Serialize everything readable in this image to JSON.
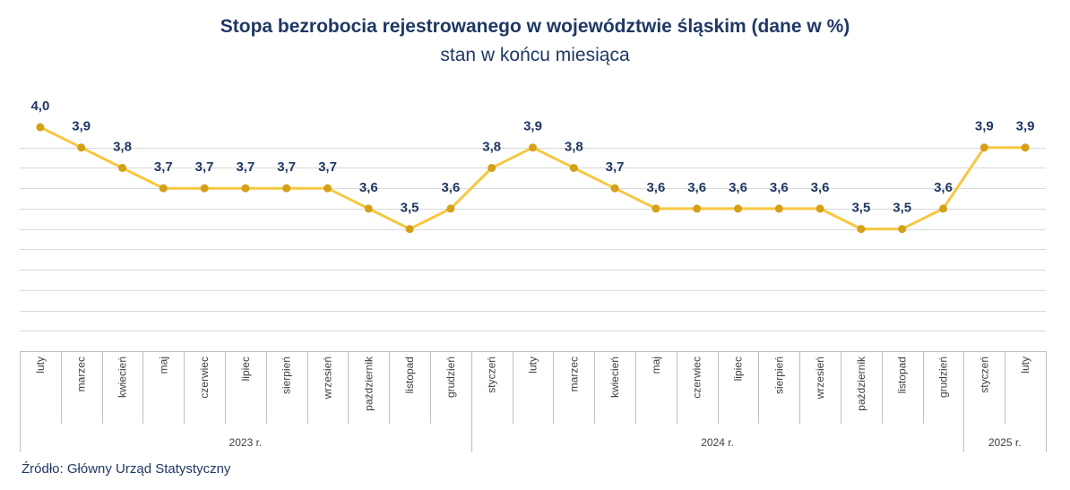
{
  "chart_data": {
    "type": "line",
    "title": "Stopa bezrobocia rejestrowanego w województwie śląskim (dane w %)",
    "subtitle": "stan w końcu miesiąca",
    "source": "Źródło: Główny Urząd Statystyczny",
    "categories": [
      "luty",
      "marzec",
      "kwiecień",
      "maj",
      "czerwiec",
      "lipiec",
      "sierpień",
      "wrzesień",
      "październik",
      "listopad",
      "grudzień",
      "styczeń",
      "luty",
      "marzec",
      "kwiecień",
      "maj",
      "czerwiec",
      "lipiec",
      "sierpień",
      "wrzesień",
      "październik",
      "listopad",
      "grudzień",
      "styczeń",
      "luty"
    ],
    "value_labels": [
      "4,0",
      "3,9",
      "3,8",
      "3,7",
      "3,7",
      "3,7",
      "3,7",
      "3,7",
      "3,6",
      "3,5",
      "3,6",
      "3,8",
      "3,9",
      "3,8",
      "3,7",
      "3,6",
      "3,6",
      "3,6",
      "3,6",
      "3,6",
      "3,5",
      "3,5",
      "3,6",
      "3,9",
      "3,9"
    ],
    "series": [
      {
        "values": [
          4.0,
          3.9,
          3.8,
          3.7,
          3.7,
          3.7,
          3.7,
          3.7,
          3.6,
          3.5,
          3.6,
          3.8,
          3.9,
          3.8,
          3.7,
          3.6,
          3.6,
          3.6,
          3.6,
          3.6,
          3.5,
          3.5,
          3.6,
          3.9,
          3.9
        ]
      }
    ],
    "groups": [
      {
        "label": "2023 r.",
        "start": 0,
        "end": 10
      },
      {
        "label": "2024 r.",
        "start": 11,
        "end": 22
      },
      {
        "label": "2025 r.",
        "start": 23,
        "end": 24
      }
    ],
    "ylim": [
      2.9,
      4.0
    ],
    "grid": true,
    "colors": {
      "line": "#f5c842",
      "marker": "#d4a017",
      "text": "#1f3864",
      "grid": "#d9d9d9"
    }
  }
}
